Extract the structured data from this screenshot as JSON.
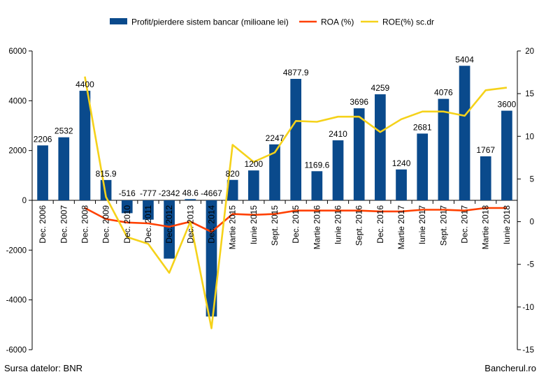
{
  "source_left": "Sursa datelor: BNR",
  "source_right": "Bancherul.ro",
  "colors": {
    "bar": "#0a4a8c",
    "roa": "#ff4000",
    "roe": "#f5d21a",
    "axis": "#000000",
    "grid": "#bdbdbd"
  },
  "chart_data": {
    "type": "bar",
    "categories": [
      "Dec. 2006",
      "Dec. 2007",
      "Dec. 2008",
      "Dec. 2009",
      "Dec. 2010",
      "Dec. 2011",
      "Dec. 2012",
      "Dec. 2013",
      "Dec. 2014",
      "Martie 2015",
      "Iunie 2015",
      "Sept. 2015",
      "Dec. 2015",
      "Martie 2016",
      "Iunie 2016",
      "Sept. 2016",
      "Dec. 2016",
      "Martie 2017",
      "Iunie 2017",
      "Sept. 2017",
      "Dec. 2017",
      "Martie 2018",
      "Iunie 2018"
    ],
    "series": [
      {
        "name": "Profit/pierdere sistem bancar (milioane lei)",
        "type": "bar",
        "axis": "left",
        "values": [
          2206,
          2532,
          4400,
          815.9,
          -516,
          -777,
          -2342,
          48.6,
          -4667,
          820,
          1200,
          2247,
          4877.9,
          1169.6,
          2410,
          3696,
          4259,
          1240,
          2681,
          4076,
          5404,
          1767,
          3600
        ],
        "labels": [
          "2206",
          "2532",
          "4400",
          "815.9",
          "-516",
          "-777",
          "-2342",
          "48.6",
          "-4667",
          "820",
          "1200",
          "2247",
          "4877.9",
          "1169.6",
          "2410",
          "3696",
          "4259",
          "1240",
          "2681",
          "4076",
          "5404",
          "1767",
          "3600"
        ]
      },
      {
        "name": "ROA (%)",
        "type": "line",
        "axis": "right",
        "values": [
          null,
          null,
          1.6,
          0.3,
          -0.1,
          -0.2,
          -0.6,
          0.0,
          -1.2,
          0.9,
          0.8,
          0.9,
          1.3,
          1.3,
          1.3,
          1.3,
          1.2,
          1.2,
          1.4,
          1.4,
          1.3,
          1.6,
          1.6
        ]
      },
      {
        "name": "ROE(%) sc.dr",
        "type": "line",
        "axis": "right",
        "values": [
          null,
          null,
          17.0,
          2.9,
          -1.8,
          -2.6,
          -6.0,
          0.0,
          -12.5,
          9.0,
          7.0,
          8.1,
          11.8,
          11.7,
          12.3,
          12.3,
          10.5,
          12.0,
          12.9,
          12.9,
          12.4,
          15.4,
          15.7
        ]
      }
    ],
    "y_left": {
      "ylim": [
        -6000,
        6000
      ],
      "ticks": [
        -6000,
        -4000,
        -2000,
        0,
        2000,
        4000,
        6000
      ]
    },
    "y_right": {
      "ylim": [
        -15,
        20
      ],
      "ticks": [
        -15,
        -10,
        -5,
        0,
        5,
        10,
        15,
        20
      ]
    },
    "legend_position": "top",
    "grid": false
  }
}
